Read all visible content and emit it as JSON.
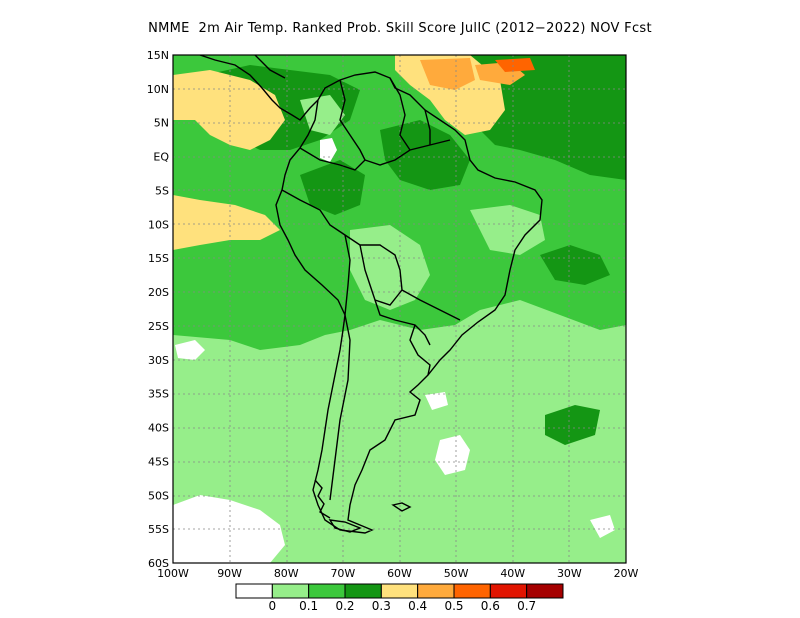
{
  "title": "NMME  2m Air Temp. Ranked Prob. Skill Score JulIC (2012−2022) NOV Fcst",
  "map": {
    "lon_range": [
      -100,
      -20
    ],
    "lat_range": [
      -60,
      15
    ],
    "lat_labels": [
      "15N",
      "10N",
      "5N",
      "EQ",
      "5S",
      "10S",
      "15S",
      "20S",
      "25S",
      "30S",
      "35S",
      "40S",
      "45S",
      "50S",
      "55S",
      "60S"
    ],
    "lon_labels": [
      "100W",
      "90W",
      "80W",
      "70W",
      "60W",
      "50W",
      "40W",
      "30W",
      "20W"
    ],
    "grid": "dotted"
  },
  "colorbar": {
    "labels": [
      "0",
      "0.1",
      "0.2",
      "0.3",
      "0.4",
      "0.5",
      "0.6",
      "0.7"
    ],
    "colors": [
      "#ffffff",
      "#96ee8a",
      "#3cc83c",
      "#149614",
      "#ffe17d",
      "#ffaa3c",
      "#ff6400",
      "#e11400",
      "#a50000"
    ]
  }
}
